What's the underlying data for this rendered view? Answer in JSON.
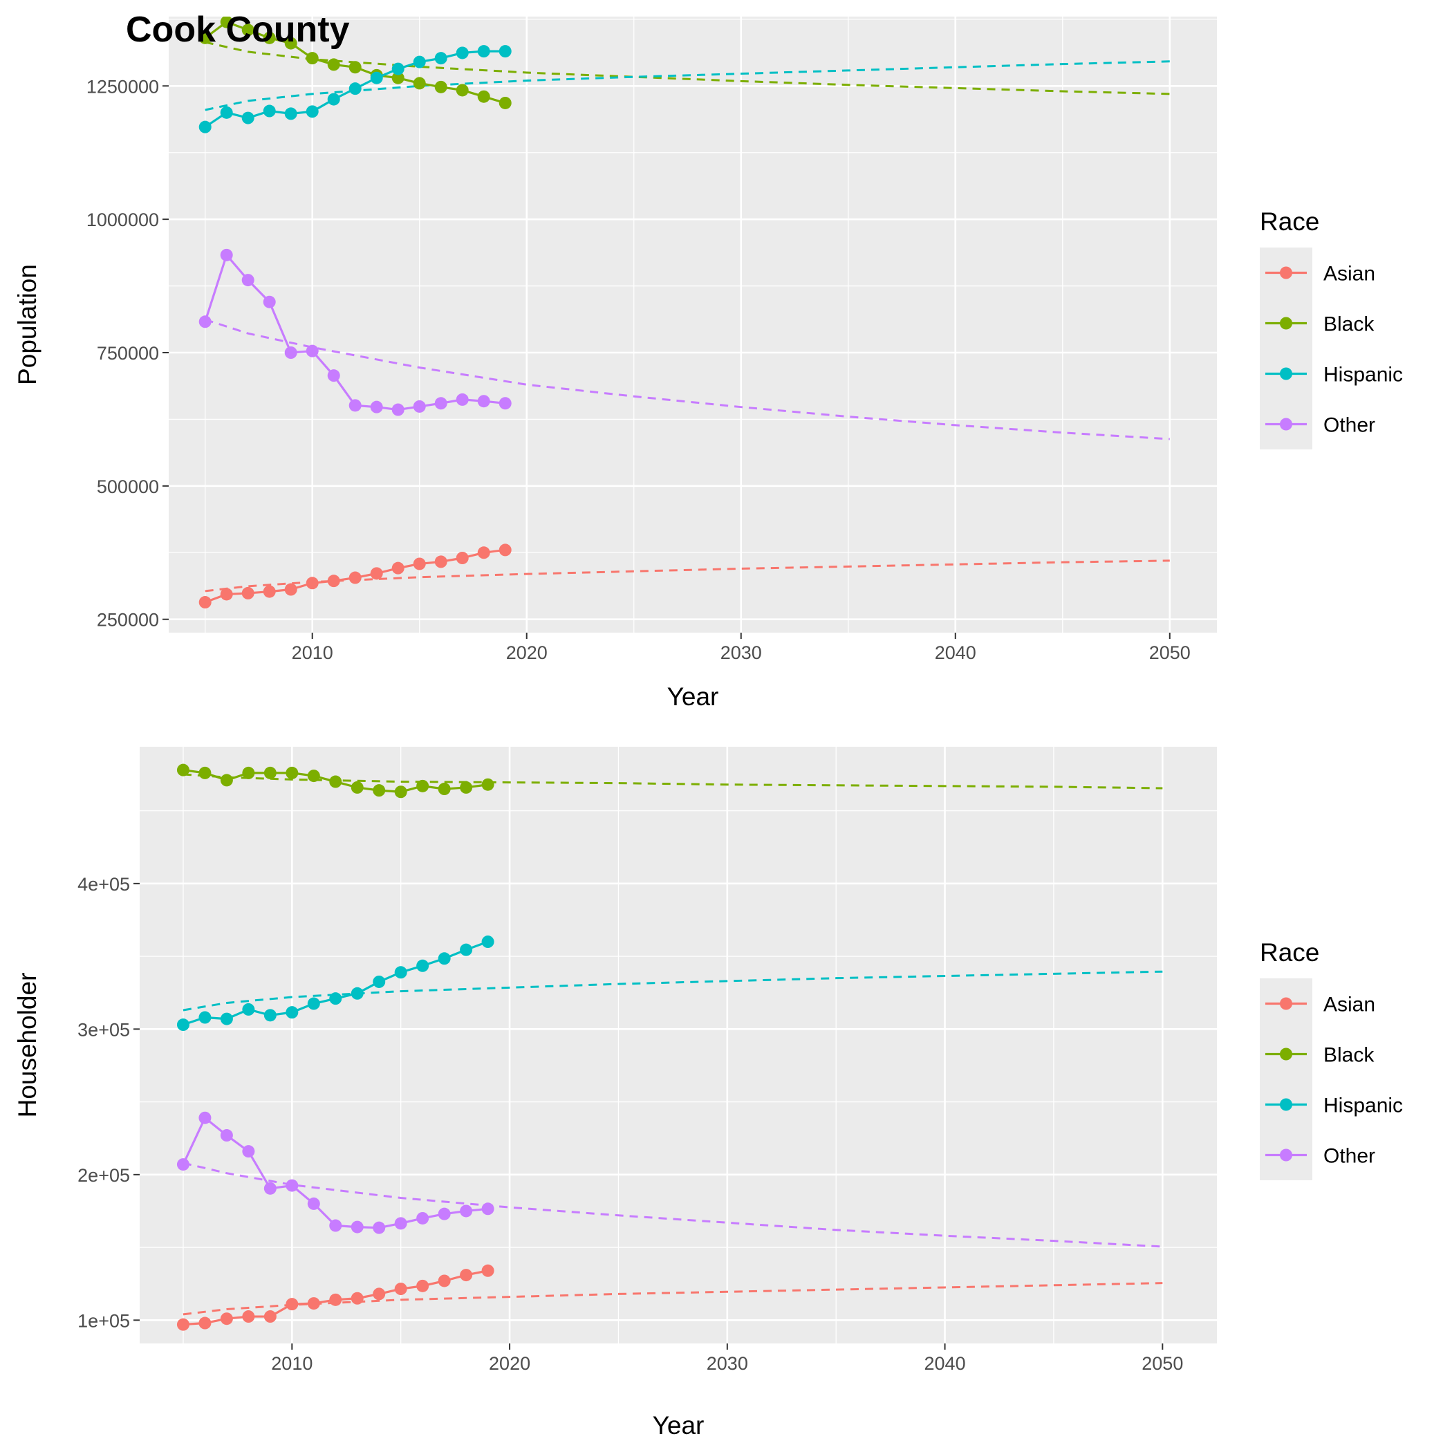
{
  "title": "Cook County",
  "colors": {
    "Asian": "#F8766D",
    "Black": "#7CAE00",
    "Hispanic": "#00BFC4",
    "Other": "#C77CFF"
  },
  "chart_data": [
    {
      "type": "line",
      "title": "Cook County",
      "xlabel": "Year",
      "ylabel": "Population",
      "xlim": [
        2003.3,
        2052.2
      ],
      "ylim": [
        225000,
        1380000
      ],
      "xticks": [
        2010,
        2020,
        2030,
        2040,
        2050
      ],
      "xtick_labels": [
        "2010",
        "2020",
        "2030",
        "2040",
        "2050"
      ],
      "yticks": [
        250000,
        500000,
        750000,
        1000000,
        1250000
      ],
      "ytick_labels": [
        "250000",
        "500000",
        "750000",
        "1000000",
        "1250000"
      ],
      "grid": true,
      "legend": {
        "title": "Race",
        "position": "right"
      },
      "x": [
        2005,
        2006,
        2007,
        2008,
        2009,
        2010,
        2011,
        2012,
        2013,
        2014,
        2015,
        2016,
        2017,
        2018,
        2019
      ],
      "series": [
        {
          "name": "Asian",
          "values": [
            282000,
            297000,
            299000,
            302000,
            306000,
            318000,
            322000,
            328000,
            336000,
            346000,
            354000,
            358000,
            365000,
            375000,
            380000
          ]
        },
        {
          "name": "Black",
          "values": [
            1340000,
            1370000,
            1355000,
            1340000,
            1330000,
            1302000,
            1290000,
            1285000,
            1270000,
            1265000,
            1255000,
            1248000,
            1242000,
            1230000,
            1218000
          ]
        },
        {
          "name": "Hispanic",
          "values": [
            1173000,
            1200000,
            1190000,
            1203000,
            1198000,
            1202000,
            1225000,
            1245000,
            1265000,
            1282000,
            1295000,
            1302000,
            1312000,
            1315000,
            1315000
          ]
        },
        {
          "name": "Other",
          "values": [
            808000,
            933000,
            886000,
            845000,
            750000,
            753000,
            707000,
            651000,
            648000,
            643000,
            649000,
            655000,
            662000,
            659000,
            655000
          ]
        }
      ],
      "trend_x": [
        2005,
        2007,
        2010,
        2015,
        2020,
        2025,
        2030,
        2035,
        2040,
        2045,
        2050
      ],
      "trend": [
        {
          "name": "Asian",
          "values": [
            303000,
            312000,
            320000,
            329000,
            335000,
            340000,
            345000,
            349000,
            353000,
            357000,
            360000
          ]
        },
        {
          "name": "Black",
          "values": [
            1332000,
            1314000,
            1300000,
            1286000,
            1275000,
            1267000,
            1259000,
            1252000,
            1246000,
            1240000,
            1235000
          ]
        },
        {
          "name": "Hispanic",
          "values": [
            1205000,
            1222000,
            1235000,
            1250000,
            1260000,
            1267000,
            1273000,
            1279000,
            1285000,
            1291000,
            1296000
          ]
        },
        {
          "name": "Other",
          "values": [
            812000,
            786000,
            760000,
            722000,
            690000,
            668000,
            648000,
            630000,
            614000,
            600000,
            588000
          ]
        }
      ]
    },
    {
      "type": "line",
      "xlabel": "Year",
      "ylabel": "Householder",
      "xlim": [
        2003.0,
        2052.5
      ],
      "ylim": [
        84000,
        494000
      ],
      "xticks": [
        2010,
        2020,
        2030,
        2040,
        2050
      ],
      "xtick_labels": [
        "2010",
        "2020",
        "2030",
        "2040",
        "2050"
      ],
      "yticks": [
        100000,
        200000,
        300000,
        400000
      ],
      "ytick_labels": [
        "1e+05",
        "2e+05",
        "3e+05",
        "4e+05"
      ],
      "grid": true,
      "legend": {
        "title": "Race",
        "position": "right"
      },
      "x": [
        2005,
        2006,
        2007,
        2008,
        2009,
        2010,
        2011,
        2012,
        2013,
        2014,
        2015,
        2016,
        2017,
        2018,
        2019
      ],
      "series": [
        {
          "name": "Asian",
          "values": [
            97000,
            98000,
            101000,
            102500,
            102500,
            111000,
            111500,
            114000,
            115000,
            118000,
            121500,
            123500,
            127000,
            131000,
            134000
          ]
        },
        {
          "name": "Black",
          "values": [
            478000,
            476000,
            471000,
            476000,
            476000,
            476000,
            474000,
            470000,
            466000,
            464000,
            463000,
            467000,
            465000,
            466000,
            468000
          ]
        },
        {
          "name": "Hispanic",
          "values": [
            303000,
            308000,
            307000,
            313500,
            309500,
            311500,
            317500,
            321000,
            324500,
            332500,
            339000,
            343500,
            348500,
            354500,
            360000
          ]
        },
        {
          "name": "Other",
          "values": [
            207000,
            239000,
            227000,
            216000,
            190500,
            192500,
            180000,
            165000,
            164000,
            163500,
            166500,
            170000,
            173000,
            175000,
            176500
          ]
        }
      ],
      "trend_x": [
        2005,
        2007,
        2010,
        2015,
        2020,
        2025,
        2030,
        2035,
        2040,
        2045,
        2050
      ],
      "trend": [
        {
          "name": "Asian",
          "values": [
            104000,
            107500,
            110500,
            114000,
            116000,
            118000,
            119500,
            121000,
            122500,
            124000,
            125500
          ]
        },
        {
          "name": "Black",
          "values": [
            475000,
            473000,
            471500,
            470000,
            469500,
            469000,
            468000,
            467500,
            467000,
            466500,
            465500
          ]
        },
        {
          "name": "Hispanic",
          "values": [
            313000,
            318000,
            322000,
            326000,
            328500,
            331000,
            333000,
            335000,
            336500,
            338000,
            339500
          ]
        },
        {
          "name": "Other",
          "values": [
            208000,
            201000,
            193000,
            184000,
            177500,
            172000,
            167000,
            162000,
            158000,
            154500,
            150500
          ]
        }
      ]
    }
  ]
}
